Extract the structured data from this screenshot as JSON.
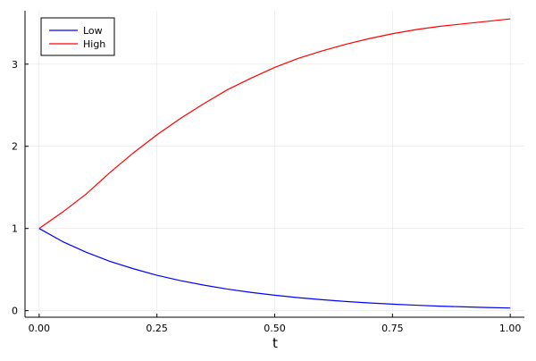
{
  "chart_data": {
    "type": "line",
    "title": "",
    "xlabel": "t",
    "ylabel": "",
    "xlim": [
      -0.03,
      1.03
    ],
    "ylim": [
      -0.08,
      3.65
    ],
    "x_ticks": [
      0.0,
      0.25,
      0.5,
      0.75,
      1.0
    ],
    "x_tick_labels": [
      "0.00",
      "0.25",
      "0.50",
      "0.75",
      "1.00"
    ],
    "y_ticks": [
      0,
      1,
      2,
      3
    ],
    "y_tick_labels": [
      "0",
      "1",
      "2",
      "3"
    ],
    "grid": true,
    "legend_position": "top-left",
    "series": [
      {
        "name": "Low",
        "color": "#0000ff",
        "x": [
          0.0,
          0.05,
          0.1,
          0.15,
          0.2,
          0.25,
          0.3,
          0.35,
          0.4,
          0.45,
          0.5,
          0.55,
          0.6,
          0.65,
          0.7,
          0.75,
          0.8,
          0.85,
          0.9,
          0.95,
          1.0
        ],
        "y": [
          1.0,
          0.84,
          0.71,
          0.6,
          0.51,
          0.43,
          0.365,
          0.31,
          0.262,
          0.222,
          0.188,
          0.158,
          0.133,
          0.112,
          0.094,
          0.079,
          0.066,
          0.055,
          0.046,
          0.038,
          0.032
        ]
      },
      {
        "name": "High",
        "color": "#ff0000",
        "x": [
          0.0,
          0.05,
          0.1,
          0.15,
          0.2,
          0.25,
          0.3,
          0.35,
          0.4,
          0.45,
          0.5,
          0.55,
          0.6,
          0.65,
          0.7,
          0.75,
          0.8,
          0.85,
          0.9,
          0.95,
          1.0
        ],
        "y": [
          1.0,
          1.2,
          1.42,
          1.68,
          1.92,
          2.14,
          2.34,
          2.52,
          2.69,
          2.83,
          2.96,
          3.07,
          3.16,
          3.24,
          3.31,
          3.37,
          3.42,
          3.46,
          3.49,
          3.52,
          3.55
        ]
      }
    ]
  }
}
